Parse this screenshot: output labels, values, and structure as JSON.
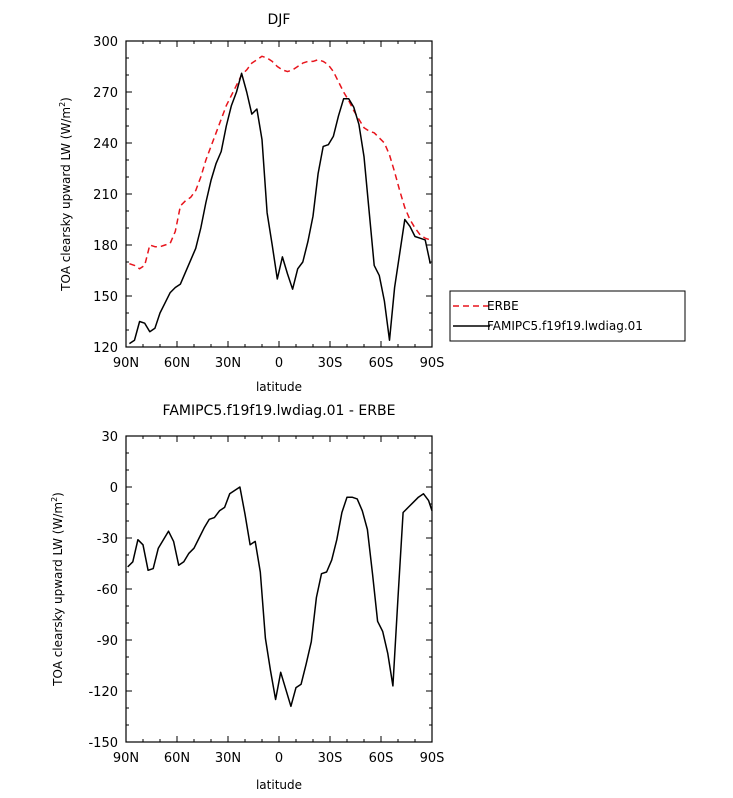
{
  "chart_data": [
    {
      "type": "line",
      "title": "DJF",
      "xlabel": "latitude",
      "ylabel": "TOA clearsky upward LW (W/m",
      "ylabel_sup": "2",
      "ylabel_close": ")",
      "xlim": [
        -90,
        90
      ],
      "ylim": [
        120,
        300
      ],
      "xticks": [
        -90,
        -60,
        -30,
        0,
        30,
        60,
        90
      ],
      "xtick_labels": [
        "90N",
        "60N",
        "30N",
        "0",
        "30S",
        "60S",
        "90S"
      ],
      "yticks": [
        120,
        150,
        180,
        210,
        240,
        270,
        300
      ],
      "ytick_labels": [
        "120",
        "150",
        "180",
        "210",
        "240",
        "270",
        "300"
      ],
      "legend": [
        "ERBE",
        "FAMIPC5.f19f19.lwdiag.01"
      ],
      "series": [
        {
          "name": "ERBE",
          "color": "#e8141c",
          "dash": true,
          "x": [
            -88,
            -85,
            -82,
            -79,
            -76,
            -73,
            -70,
            -67,
            -64,
            -61,
            -58,
            -55,
            -52,
            -49,
            -46,
            -43,
            -40,
            -37,
            -34,
            -31,
            -28,
            -25,
            -22,
            -19,
            -16,
            -13,
            -10,
            -7,
            -4,
            -1,
            2,
            5,
            8,
            11,
            14,
            17,
            20,
            23,
            26,
            29,
            32,
            35,
            38,
            41,
            44,
            47,
            50,
            53,
            56,
            59,
            62,
            65,
            68,
            71,
            74,
            77,
            80,
            83,
            86,
            89
          ],
          "y": [
            169,
            168,
            166,
            168,
            180,
            179,
            179,
            180,
            181,
            188,
            203,
            206,
            208,
            212,
            220,
            230,
            238,
            246,
            254,
            262,
            268,
            274,
            280,
            283,
            287,
            289,
            291,
            290,
            288,
            285,
            283,
            282,
            283,
            285,
            287,
            288,
            288,
            289,
            288,
            286,
            282,
            276,
            270,
            265,
            259,
            254,
            249,
            247,
            246,
            243,
            240,
            233,
            223,
            212,
            202,
            195,
            190,
            186,
            184,
            183
          ]
        },
        {
          "name": "FAMIPC5.f19f19.lwdiag.01",
          "color": "#000000",
          "dash": false,
          "x": [
            -88,
            -85,
            -82,
            -79,
            -76,
            -73,
            -70,
            -67,
            -64,
            -61,
            -58,
            -55,
            -52,
            -49,
            -46,
            -43,
            -40,
            -37,
            -34,
            -31,
            -28,
            -25,
            -22,
            -19,
            -16,
            -13,
            -10,
            -7,
            -4,
            -1,
            2,
            5,
            8,
            11,
            14,
            17,
            20,
            23,
            26,
            29,
            32,
            35,
            38,
            41,
            44,
            47,
            50,
            53,
            56,
            59,
            62,
            65,
            68,
            71,
            74,
            77,
            80,
            83,
            86,
            89
          ],
          "y": [
            122,
            124,
            135,
            134,
            129,
            131,
            140,
            146,
            152,
            155,
            157,
            164,
            171,
            178,
            190,
            205,
            218,
            228,
            235,
            250,
            262,
            270,
            281,
            270,
            257,
            260,
            242,
            199,
            180,
            160,
            173,
            163,
            154,
            166,
            170,
            182,
            197,
            222,
            238,
            239,
            244,
            256,
            266,
            266,
            261,
            251,
            232,
            200,
            168,
            162,
            147,
            124,
            155,
            175,
            195,
            191,
            185,
            184,
            183,
            169
          ]
        }
      ]
    },
    {
      "type": "line",
      "title": "FAMIPC5.f19f19.lwdiag.01 - ERBE",
      "xlabel": "latitude",
      "ylabel": "TOA clearsky upward LW (W/m",
      "ylabel_sup": "2",
      "ylabel_close": ")",
      "xlim": [
        -90,
        90
      ],
      "ylim": [
        -150,
        30
      ],
      "xticks": [
        -90,
        -60,
        -30,
        0,
        30,
        60,
        90
      ],
      "xtick_labels": [
        "90N",
        "60N",
        "30N",
        "0",
        "30S",
        "60S",
        "90S"
      ],
      "yticks": [
        -150,
        -120,
        -90,
        -60,
        -30,
        0,
        30
      ],
      "ytick_labels": [
        "-150",
        "-120",
        "-90",
        "-60",
        "-30",
        "0",
        "30"
      ],
      "series": [
        {
          "name": "FAMIPC5.f19f19.lwdiag.01 - ERBE",
          "color": "#000000",
          "dash": false,
          "x": [
            -89,
            -86,
            -83,
            -80,
            -77,
            -74,
            -71,
            -68,
            -65,
            -62,
            -59,
            -56,
            -53,
            -50,
            -47,
            -44,
            -41,
            -38,
            -35,
            -32,
            -29,
            -26,
            -23,
            -20,
            -17,
            -14,
            -11,
            -8,
            -5,
            -2,
            1,
            4,
            7,
            10,
            13,
            16,
            19,
            22,
            25,
            28,
            31,
            34,
            37,
            40,
            43,
            46,
            49,
            52,
            55,
            58,
            61,
            64,
            67,
            70,
            73,
            76,
            79,
            82,
            85,
            88,
            90
          ],
          "y": [
            -47,
            -44,
            -31,
            -34,
            -49,
            -48,
            -36,
            -31,
            -26,
            -32,
            -46,
            -44,
            -39,
            -36,
            -30,
            -24,
            -19,
            -18,
            -14,
            -12,
            -4,
            -2,
            0,
            -16,
            -34,
            -32,
            -50,
            -89,
            -108,
            -125,
            -109,
            -119,
            -129,
            -118,
            -116,
            -104,
            -91,
            -65,
            -51,
            -50,
            -43,
            -31,
            -15,
            -6,
            -6,
            -7,
            -14,
            -25,
            -51,
            -79,
            -85,
            -98,
            -117,
            -65,
            -15,
            -12,
            -9,
            -6,
            -4,
            -8,
            -14
          ]
        }
      ]
    }
  ]
}
